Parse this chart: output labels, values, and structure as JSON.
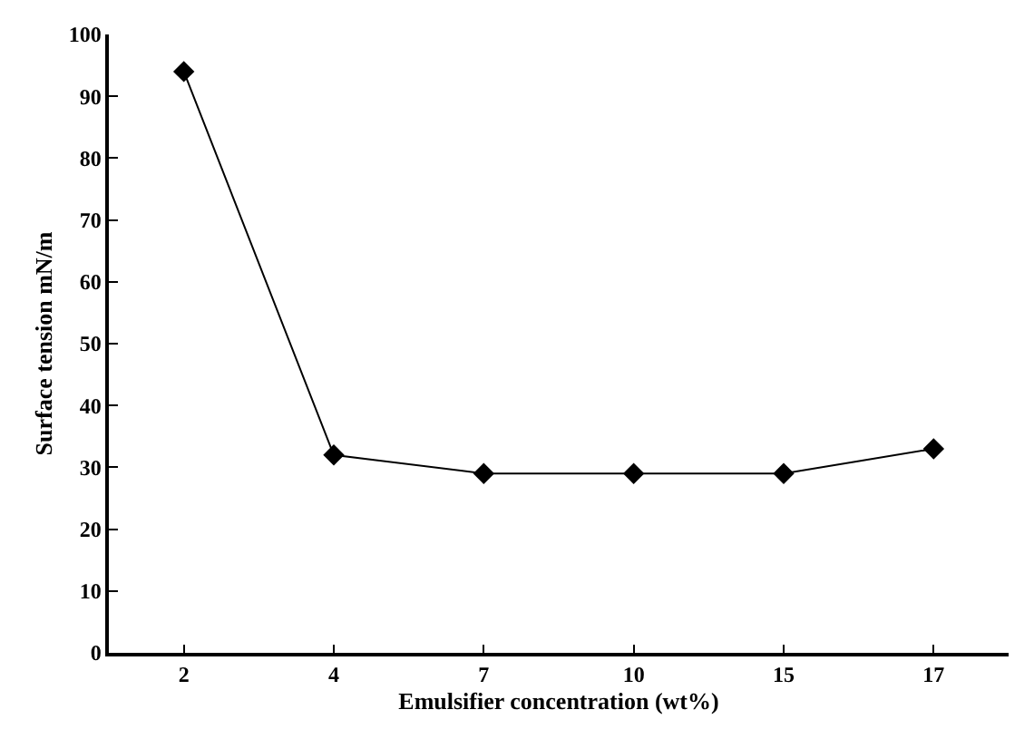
{
  "chart_data": {
    "type": "line",
    "xlabel": "Emulsifier concentration (wt%)",
    "ylabel": "Surface tension mN/m",
    "categories": [
      "2",
      "4",
      "7",
      "10",
      "15",
      "17"
    ],
    "series": [
      {
        "color": "#000000",
        "values": [
          94,
          32,
          29,
          29,
          29,
          33
        ]
      }
    ],
    "ylim": [
      0,
      100
    ],
    "yticks": [
      0,
      10,
      20,
      30,
      40,
      50,
      60,
      70,
      80,
      90,
      100
    ],
    "legend": false,
    "marker": "diamond",
    "line_style": "solid"
  }
}
